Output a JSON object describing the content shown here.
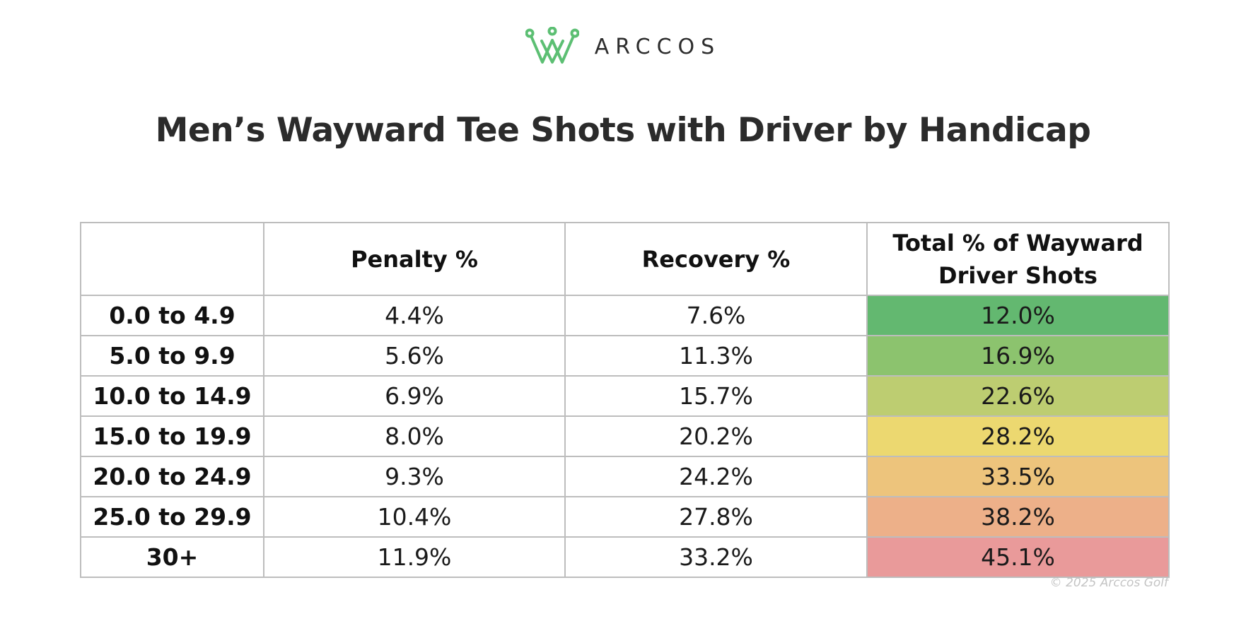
{
  "brand": {
    "logo_text": "ARCCOS",
    "logo_icon": "crown-icon",
    "logo_color": "#5cbf73"
  },
  "title": "Men’s Wayward Tee Shots with Driver by Handicap",
  "copyright": "© 2025 Arccos Golf",
  "chart_data": {
    "type": "table",
    "title": "Men’s Wayward Tee Shots with Driver by Handicap",
    "columns": [
      "",
      "Penalty %",
      "Recovery %",
      "Total % of Wayward Driver Shots"
    ],
    "rows": [
      {
        "label": "0.0 to 4.9",
        "penalty": "4.4%",
        "recovery": "7.6%",
        "total": "12.0%",
        "total_color": "#63b870"
      },
      {
        "label": "5.0 to 9.9",
        "penalty": "5.6%",
        "recovery": "11.3%",
        "total": "16.9%",
        "total_color": "#8cc36e"
      },
      {
        "label": "10.0 to 14.9",
        "penalty": "6.9%",
        "recovery": "15.7%",
        "total": "22.6%",
        "total_color": "#bdcd71"
      },
      {
        "label": "15.0 to 19.9",
        "penalty": "8.0%",
        "recovery": "20.2%",
        "total": "28.2%",
        "total_color": "#ecd870"
      },
      {
        "label": "20.0 to 24.9",
        "penalty": "9.3%",
        "recovery": "24.2%",
        "total": "33.5%",
        "total_color": "#edc47c"
      },
      {
        "label": "25.0 to 29.9",
        "penalty": "10.4%",
        "recovery": "27.8%",
        "total": "38.2%",
        "total_color": "#edb089"
      },
      {
        "label": "30+",
        "penalty": "11.9%",
        "recovery": "33.2%",
        "total": "45.1%",
        "total_color": "#e99a9a"
      }
    ]
  }
}
